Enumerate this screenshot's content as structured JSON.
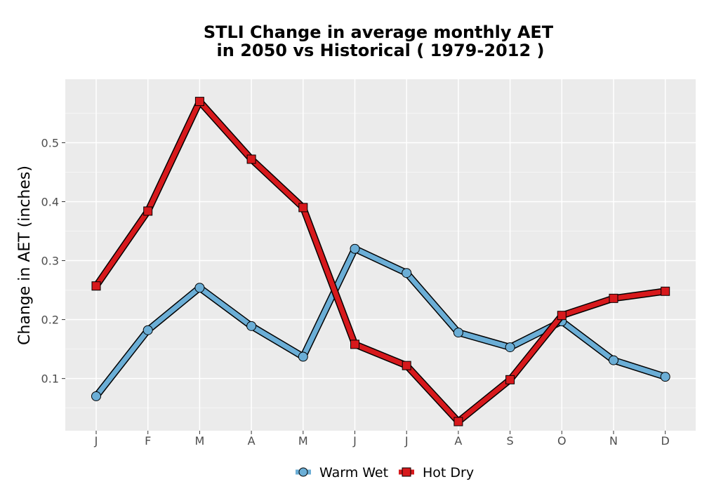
{
  "chart_data": {
    "type": "line",
    "title_line1": "STLI  Change in average monthly AET",
    "title_line2": "in 2050 vs Historical ( 1979-2012 )",
    "xlabel": "",
    "ylabel": "Change in AET (inches)",
    "categories": [
      "J",
      "F",
      "M",
      "A",
      "M",
      "J",
      "J",
      "A",
      "S",
      "O",
      "N",
      "D"
    ],
    "yticks": [
      "0.1",
      "0.2",
      "0.3",
      "0.4",
      "0.5"
    ],
    "ylim": [
      0.0,
      0.6
    ],
    "grid": true,
    "legend_position": "bottom",
    "series": [
      {
        "name": "Warm Wet",
        "color": "#6baed6",
        "marker": "circle",
        "values": [
          0.07,
          0.182,
          0.254,
          0.189,
          0.137,
          0.32,
          0.279,
          0.178,
          0.153,
          0.197,
          0.131,
          0.103
        ]
      },
      {
        "name": "Hot Dry",
        "color": "#d7191c",
        "marker": "square",
        "values": [
          0.257,
          0.384,
          0.57,
          0.472,
          0.39,
          0.158,
          0.122,
          0.027,
          0.098,
          0.207,
          0.236,
          0.248
        ]
      }
    ]
  }
}
